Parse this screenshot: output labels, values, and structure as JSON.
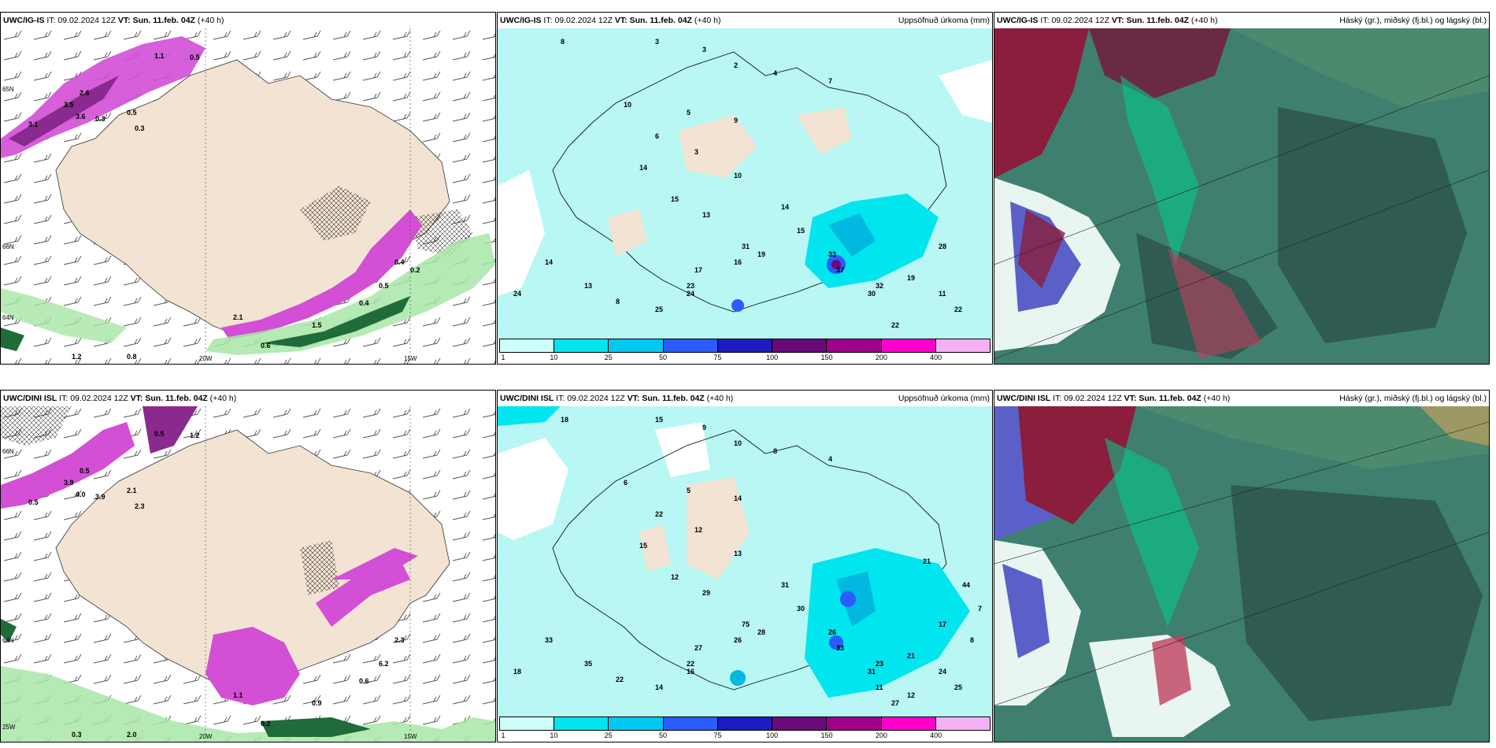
{
  "rows": [
    {
      "model": "UWC/IG-IS",
      "it_label": "IT:",
      "it_value": "09.02.2024 12Z",
      "vt_label": "VT:",
      "vt_value": "Sun. 11.feb. 04Z",
      "lead": "(+40 h)",
      "panel2_right": "Uppsöfnuð úrkoma (mm)",
      "panel3_right": "Háský (gr.), miðský (fj.bl.) og lágský (bl.)",
      "p1_lon_labels": [
        "20W",
        "15W"
      ],
      "p1_lat_labels": [
        "65N",
        "66N",
        "64N"
      ],
      "p1_values": [
        "1.1",
        "0.5",
        "2.6",
        "3.5",
        "3.6",
        "3.1",
        "0.5",
        "0.3",
        "0.3",
        "0.5",
        "0.4",
        "0.6",
        "1.2",
        "0.8",
        "2.1",
        "1.5",
        "0.4",
        "0.2"
      ],
      "p2_values": [
        "8",
        "3",
        "3",
        "2",
        "4",
        "7",
        "10",
        "5",
        "9",
        "6",
        "3",
        "14",
        "10",
        "15",
        "14",
        "13",
        "15",
        "31",
        "16",
        "19",
        "17",
        "23",
        "33",
        "37",
        "32",
        "30",
        "28",
        "19",
        "11",
        "22",
        "22",
        "24",
        "13",
        "14",
        "8",
        "25",
        "24"
      ]
    },
    {
      "model": "UWC/DINI ISL",
      "it_label": "IT:",
      "it_value": "09.02.2024 12Z",
      "vt_label": "VT:",
      "vt_value": "Sun. 11.feb. 04Z",
      "lead": "(+40 h)",
      "panel2_right": "Uppsöfnuð úrkoma (mm)",
      "panel3_right": "Háský (gr.), miðský (fj.bl.) og lágský (bl.)",
      "p1_lon_labels": [
        "20W",
        "15W"
      ],
      "p1_lat_labels": [
        "66N",
        "64N",
        "25W"
      ],
      "p1_values": [
        "0.5",
        "1.2",
        "0.5",
        "3.9",
        "4.0",
        "0.5",
        "2.1",
        "3.9",
        "2.3",
        "6.2",
        "0.6",
        "0.2",
        "0.3",
        "2.0",
        "1.1",
        "0.9",
        "2.3"
      ],
      "p2_values": [
        "18",
        "15",
        "9",
        "10",
        "8",
        "4",
        "6",
        "5",
        "14",
        "22",
        "12",
        "15",
        "13",
        "12",
        "31",
        "29",
        "30",
        "75",
        "26",
        "28",
        "27",
        "22",
        "26",
        "33",
        "23",
        "31",
        "17",
        "21",
        "24",
        "25",
        "27",
        "18",
        "35",
        "33",
        "22",
        "14",
        "16",
        "11",
        "12",
        "21",
        "44",
        "8",
        "7"
      ]
    }
  ],
  "colorbar": {
    "labels": [
      "1",
      "10",
      "25",
      "50",
      "75",
      "100",
      "150",
      "200",
      "400"
    ],
    "colors": [
      "#ccfff8",
      "#00e5ee",
      "#00c8f0",
      "#2a5cff",
      "#1c1cc0",
      "#6a0a7a",
      "#a0008a",
      "#ff00cc",
      "#f5b0f5"
    ]
  },
  "colors": {
    "land": "#f3e3d2",
    "precip_light": "#b8f7f4",
    "snow_magenta": "#d24fd6",
    "rain_green": "#2e9a55",
    "cloud_dark": "#2f5b52",
    "cloud_red": "#8a1e3c"
  }
}
